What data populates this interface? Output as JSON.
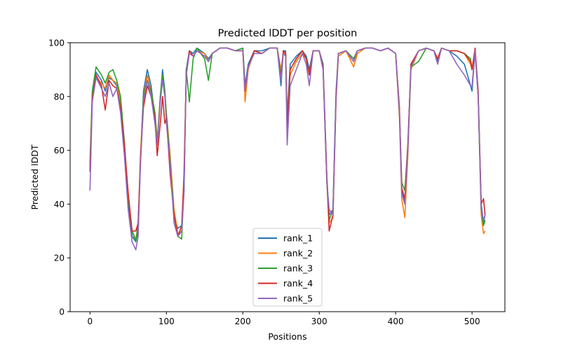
{
  "chart_data": {
    "type": "line",
    "title": "Predicted lDDT per position",
    "xlabel": "Positions",
    "ylabel": "Predicted lDDT",
    "xlim": [
      -26,
      543
    ],
    "ylim": [
      0,
      100
    ],
    "xticks": [
      0,
      100,
      200,
      300,
      400,
      500
    ],
    "yticks": [
      0,
      20,
      40,
      60,
      80,
      100
    ],
    "grid": false,
    "legend_placement": "lower-center",
    "x": [
      0,
      3,
      8,
      15,
      20,
      25,
      30,
      35,
      40,
      45,
      50,
      55,
      60,
      63,
      66,
      70,
      75,
      80,
      85,
      88,
      92,
      95,
      98,
      100,
      105,
      110,
      115,
      120,
      123,
      126,
      130,
      135,
      140,
      150,
      155,
      160,
      170,
      180,
      190,
      200,
      203,
      207,
      215,
      225,
      235,
      245,
      250,
      253,
      256,
      258,
      262,
      270,
      278,
      283,
      287,
      292,
      300,
      305,
      310,
      313,
      318,
      322,
      325,
      335,
      345,
      350,
      360,
      370,
      380,
      390,
      400,
      405,
      408,
      412,
      416,
      420,
      430,
      440,
      450,
      455,
      460,
      470,
      480,
      490,
      498,
      500,
      504,
      508,
      512,
      515,
      517
    ],
    "series": [
      {
        "name": "rank_1",
        "color": "#1f77b4",
        "values": [
          53,
          80,
          89,
          86,
          82,
          87,
          86,
          84,
          76,
          60,
          40,
          28,
          26,
          30,
          56,
          82,
          90,
          84,
          72,
          62,
          80,
          90,
          82,
          72,
          55,
          35,
          31,
          32,
          45,
          90,
          97,
          96,
          98,
          96,
          94,
          96,
          98,
          98,
          97,
          98,
          84,
          92,
          97,
          97,
          98,
          98,
          84,
          97,
          97,
          72,
          92,
          95,
          97,
          95,
          90,
          97,
          97,
          92,
          50,
          36,
          38,
          82,
          96,
          97,
          94,
          97,
          98,
          98,
          97,
          98,
          96,
          75,
          45,
          41,
          60,
          92,
          97,
          98,
          97,
          93,
          98,
          97,
          95,
          92,
          84,
          82,
          97,
          80,
          40,
          33,
          36
        ]
      },
      {
        "name": "rank_2",
        "color": "#ff7f0e",
        "values": [
          52,
          80,
          87,
          85,
          83,
          88,
          86,
          85,
          78,
          62,
          44,
          30,
          27,
          32,
          58,
          80,
          88,
          82,
          74,
          64,
          80,
          88,
          80,
          74,
          58,
          38,
          29,
          30,
          52,
          88,
          97,
          95,
          97,
          96,
          93,
          96,
          98,
          98,
          97,
          97,
          78,
          90,
          97,
          96,
          98,
          98,
          90,
          96,
          96,
          72,
          88,
          93,
          96,
          94,
          88,
          97,
          97,
          90,
          48,
          33,
          35,
          78,
          95,
          97,
          91,
          96,
          98,
          98,
          97,
          98,
          96,
          72,
          42,
          35,
          58,
          90,
          97,
          98,
          97,
          94,
          98,
          97,
          97,
          96,
          92,
          90,
          97,
          80,
          36,
          29,
          30
        ]
      },
      {
        "name": "rank_3",
        "color": "#2ca02c",
        "values": [
          55,
          82,
          91,
          88,
          85,
          89,
          90,
          86,
          80,
          63,
          42,
          30,
          26,
          33,
          55,
          80,
          86,
          82,
          74,
          62,
          80,
          88,
          82,
          73,
          56,
          36,
          28,
          27,
          47,
          90,
          78,
          94,
          98,
          94,
          86,
          96,
          98,
          98,
          97,
          98,
          82,
          91,
          97,
          96,
          98,
          98,
          88,
          97,
          96,
          72,
          90,
          94,
          97,
          94,
          88,
          97,
          97,
          91,
          48,
          34,
          38,
          80,
          96,
          97,
          94,
          97,
          98,
          98,
          97,
          98,
          96,
          74,
          48,
          45,
          62,
          91,
          93,
          98,
          97,
          94,
          98,
          97,
          97,
          96,
          94,
          90,
          97,
          80,
          38,
          32,
          34
        ]
      },
      {
        "name": "rank_4",
        "color": "#d62728",
        "values": [
          52,
          79,
          88,
          84,
          75,
          86,
          84,
          83,
          76,
          62,
          44,
          30,
          30,
          33,
          56,
          76,
          84,
          80,
          72,
          58,
          70,
          80,
          70,
          72,
          51,
          36,
          28,
          32,
          50,
          88,
          97,
          95,
          97,
          95,
          93,
          96,
          98,
          98,
          97,
          97,
          82,
          91,
          97,
          96,
          98,
          98,
          87,
          97,
          96,
          68,
          90,
          94,
          97,
          94,
          88,
          97,
          97,
          91,
          50,
          30,
          36,
          80,
          96,
          97,
          93,
          97,
          98,
          98,
          97,
          98,
          96,
          76,
          46,
          42,
          62,
          92,
          97,
          98,
          97,
          94,
          98,
          97,
          97,
          96,
          93,
          90,
          98,
          82,
          40,
          42,
          36
        ]
      },
      {
        "name": "rank_5",
        "color": "#9467bd",
        "values": [
          45,
          78,
          87,
          83,
          80,
          85,
          80,
          83,
          74,
          58,
          38,
          26,
          23,
          28,
          54,
          78,
          86,
          80,
          70,
          62,
          78,
          86,
          80,
          70,
          55,
          33,
          28,
          30,
          44,
          88,
          96,
          95,
          97,
          95,
          93,
          96,
          98,
          98,
          97,
          97,
          82,
          91,
          96,
          96,
          98,
          98,
          86,
          96,
          95,
          62,
          84,
          90,
          96,
          92,
          84,
          97,
          97,
          90,
          48,
          38,
          36,
          80,
          96,
          97,
          93,
          97,
          98,
          98,
          97,
          98,
          96,
          74,
          44,
          40,
          60,
          91,
          97,
          98,
          97,
          92,
          98,
          97,
          92,
          88,
          84,
          84,
          97,
          80,
          38,
          34,
          36
        ]
      }
    ]
  }
}
